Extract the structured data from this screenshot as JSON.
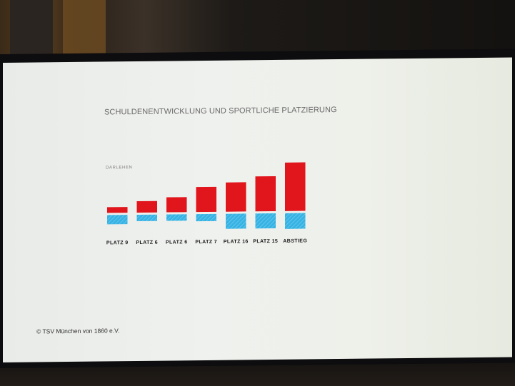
{
  "copyright": "© TSV München von 1860 e.V.",
  "chart_data": {
    "type": "bar",
    "title": "SCHULDENENTWICKLUNG UND SPORTLICHE PLATZIERUNG",
    "series_label": "DARLEHEN",
    "categories": [
      "PLATZ 9",
      "PLATZ 6",
      "PLATZ 6",
      "PLATZ 7",
      "PLATZ 16",
      "PLATZ 15",
      "ABSTIEG"
    ],
    "series": [
      {
        "values": [
          8,
          16,
          21,
          35,
          41,
          49,
          68
        ],
        "color": "#e1151c"
      },
      {
        "values": [
          13,
          9,
          9,
          10,
          21,
          21,
          22
        ],
        "color": "#36b3e4"
      }
    ],
    "ylim": [
      0,
      70
    ],
    "grid": false,
    "legend": "none"
  }
}
